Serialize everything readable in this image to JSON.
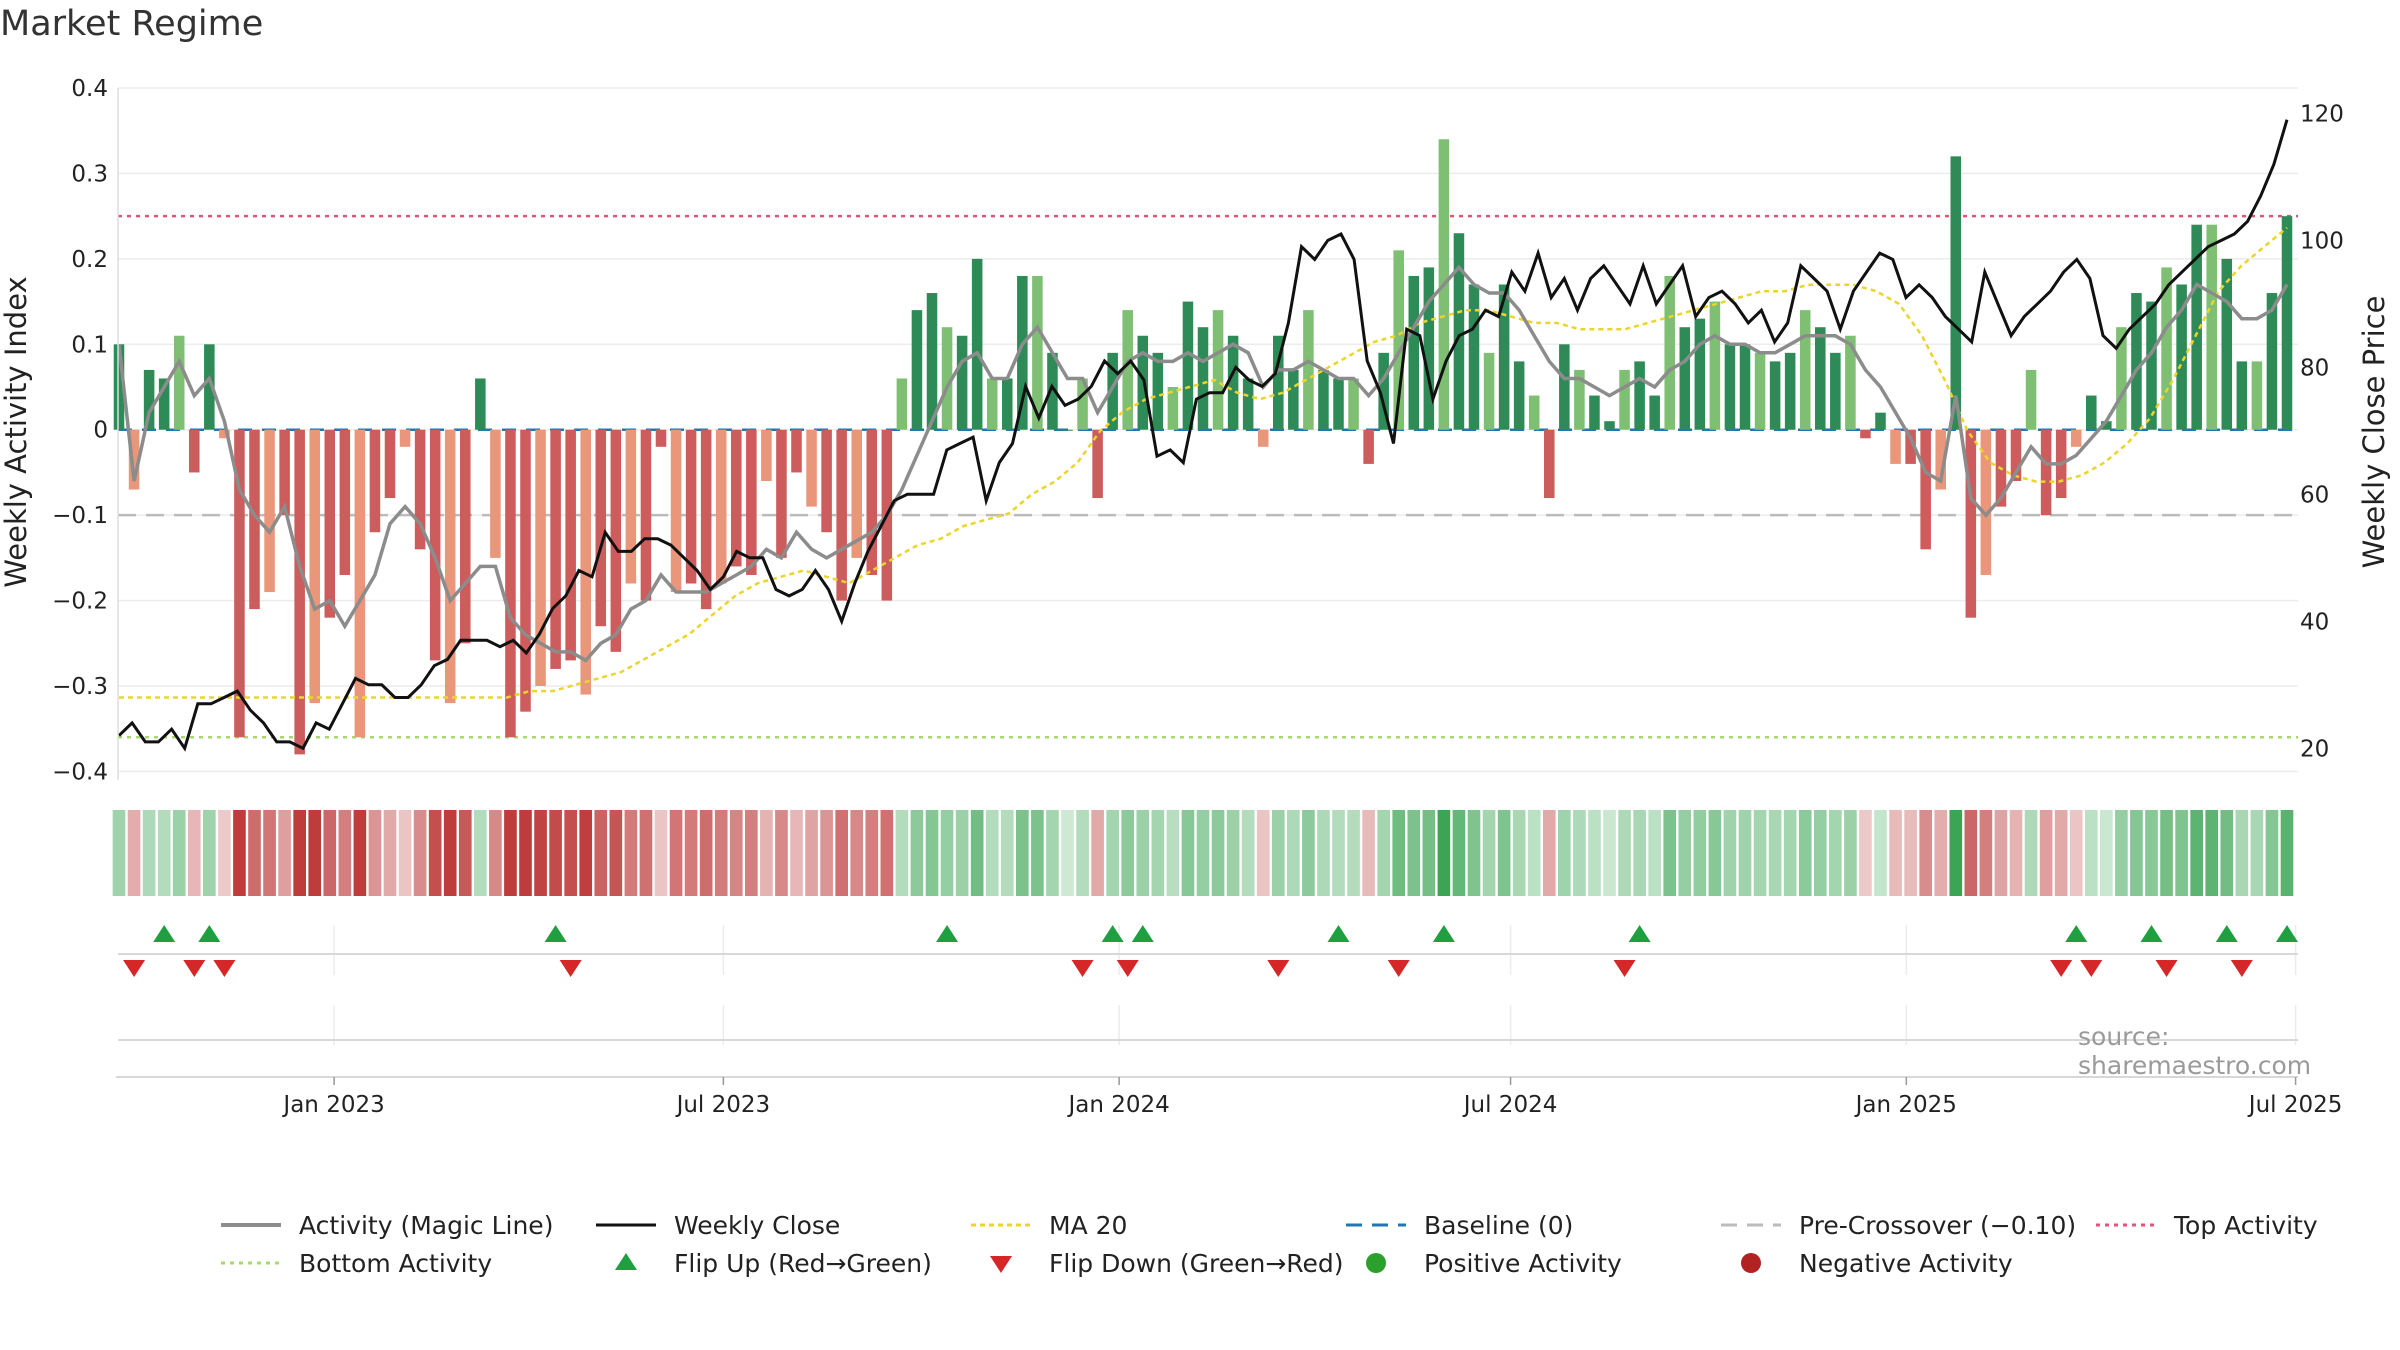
{
  "title": "Market Regime",
  "source": "source: sharemaestro.com",
  "colors": {
    "strong_green": "#2e8b57",
    "light_green": "#7fbf73",
    "strong_red": "#cd5c5c",
    "light_red": "#e9967a",
    "magic_line": "#8c8c8c",
    "close": "#111111",
    "ma20": "#ecd52a",
    "baseline": "#1f77b4",
    "pre_crossover": "#bbbbbb",
    "top": "#e05577",
    "bottom": "#a9d86e",
    "flip_up": "#1fa040",
    "flip_down": "#d62728",
    "pos_dot": "#2ca02c",
    "neg_dot": "#b22222"
  },
  "chart_data": {
    "type": "bar",
    "title": "Market Regime",
    "ylabel": "Weekly Activity Index",
    "ylabel_right": "Weekly Close Price",
    "ylim": [
      -0.41,
      0.4
    ],
    "ylim_right": [
      15,
      124
    ],
    "yticks": [
      "0.4",
      "0.3",
      "0.2",
      "0.1",
      "0",
      "−0.1",
      "−0.2",
      "−0.3",
      "−0.4"
    ],
    "yticks_right": [
      "120",
      "100",
      "80",
      "60",
      "40",
      "20"
    ],
    "xticks": [
      {
        "label": "Jan 2023",
        "x": "2023-01-01"
      },
      {
        "label": "Jul 2023",
        "x": "2023-07-01"
      },
      {
        "label": "Jan 2024",
        "x": "2024-01-01"
      },
      {
        "label": "Jul 2024",
        "x": "2024-07-01"
      },
      {
        "label": "Jan 2025",
        "x": "2025-01-01"
      },
      {
        "label": "Jul 2025",
        "x": "2025-07-01"
      }
    ],
    "x_start": "2022-09-23",
    "x_step_days": 7,
    "activity": [
      0.1,
      -0.07,
      0.07,
      0.06,
      0.11,
      -0.05,
      0.1,
      -0.01,
      -0.36,
      -0.21,
      -0.19,
      -0.1,
      -0.38,
      -0.32,
      -0.22,
      -0.17,
      -0.36,
      -0.12,
      -0.08,
      -0.02,
      -0.14,
      -0.27,
      -0.32,
      -0.25,
      0.06,
      -0.15,
      -0.36,
      -0.33,
      -0.3,
      -0.28,
      -0.27,
      -0.31,
      -0.23,
      -0.26,
      -0.18,
      -0.2,
      -0.02,
      -0.19,
      -0.18,
      -0.21,
      -0.18,
      -0.16,
      -0.17,
      -0.06,
      -0.15,
      -0.05,
      -0.09,
      -0.12,
      -0.2,
      -0.15,
      -0.17,
      -0.2,
      0.06,
      0.14,
      0.16,
      0.12,
      0.11,
      0.2,
      0.06,
      0.06,
      0.18,
      0.18,
      0.09,
      0.0,
      0.06,
      -0.08,
      0.09,
      0.14,
      0.11,
      0.09,
      0.05,
      0.15,
      0.12,
      0.14,
      0.11,
      0.06,
      -0.02,
      0.11,
      0.07,
      0.14,
      0.07,
      0.06,
      0.06,
      -0.04,
      0.09,
      0.21,
      0.18,
      0.19,
      0.34,
      0.23,
      0.17,
      0.09,
      0.17,
      0.08,
      0.04,
      -0.08,
      0.1,
      0.07,
      0.04,
      0.01,
      0.07,
      0.08,
      0.04,
      0.18,
      0.12,
      0.13,
      0.15,
      0.1,
      0.1,
      0.09,
      0.08,
      0.09,
      0.14,
      0.12,
      0.09,
      0.11,
      -0.01,
      0.02,
      -0.04,
      -0.04,
      -0.14,
      -0.07,
      0.32,
      -0.22,
      -0.17,
      -0.09,
      -0.06,
      0.07,
      -0.1,
      -0.08,
      -0.02,
      0.04,
      0.01,
      0.12,
      0.16,
      0.15,
      0.19,
      0.17,
      0.24,
      0.24,
      0.2,
      0.08,
      0.08,
      0.16,
      0.25
    ],
    "magic_line": [
      0.1,
      -0.06,
      0.02,
      0.05,
      0.08,
      0.04,
      0.06,
      0.01,
      -0.07,
      -0.1,
      -0.12,
      -0.09,
      -0.16,
      -0.21,
      -0.2,
      -0.23,
      -0.2,
      -0.17,
      -0.11,
      -0.09,
      -0.11,
      -0.15,
      -0.2,
      -0.18,
      -0.16,
      -0.16,
      -0.22,
      -0.24,
      -0.25,
      -0.26,
      -0.26,
      -0.27,
      -0.25,
      -0.24,
      -0.21,
      -0.2,
      -0.17,
      -0.19,
      -0.19,
      -0.19,
      -0.18,
      -0.17,
      -0.16,
      -0.14,
      -0.15,
      -0.12,
      -0.14,
      -0.15,
      -0.14,
      -0.13,
      -0.12,
      -0.1,
      -0.07,
      -0.03,
      0.01,
      0.05,
      0.08,
      0.09,
      0.06,
      0.06,
      0.1,
      0.12,
      0.09,
      0.06,
      0.06,
      0.02,
      0.05,
      0.08,
      0.09,
      0.08,
      0.08,
      0.09,
      0.08,
      0.09,
      0.1,
      0.09,
      0.05,
      0.07,
      0.07,
      0.08,
      0.07,
      0.06,
      0.06,
      0.04,
      0.06,
      0.09,
      0.12,
      0.15,
      0.17,
      0.19,
      0.17,
      0.16,
      0.16,
      0.14,
      0.11,
      0.08,
      0.06,
      0.06,
      0.05,
      0.04,
      0.05,
      0.06,
      0.05,
      0.07,
      0.08,
      0.1,
      0.11,
      0.1,
      0.1,
      0.09,
      0.09,
      0.1,
      0.11,
      0.11,
      0.11,
      0.1,
      0.07,
      0.05,
      0.02,
      -0.01,
      -0.05,
      -0.06,
      0.04,
      -0.08,
      -0.1,
      -0.08,
      -0.05,
      -0.02,
      -0.04,
      -0.04,
      -0.03,
      -0.01,
      0.01,
      0.04,
      0.07,
      0.09,
      0.12,
      0.14,
      0.17,
      0.16,
      0.15,
      0.13,
      0.13,
      0.14,
      0.17
    ],
    "weekly_close": [
      22,
      24,
      21,
      21,
      23,
      20,
      27,
      27,
      28,
      29,
      26,
      24,
      21,
      21,
      20,
      24,
      23,
      27,
      31,
      30,
      30,
      28,
      28,
      30,
      33,
      34,
      37,
      37,
      37,
      36,
      37,
      35,
      38,
      42,
      44,
      48,
      47,
      54,
      51,
      51,
      53,
      53,
      52,
      50,
      48,
      45,
      47,
      51,
      50,
      50,
      45,
      44,
      45,
      48,
      45,
      40,
      46,
      51,
      55,
      59,
      60,
      60,
      60,
      67,
      68,
      69,
      59,
      65,
      68,
      77,
      72,
      77,
      74,
      75,
      77,
      81,
      79,
      81,
      78,
      66,
      67,
      65,
      75,
      76,
      76,
      80,
      78,
      77,
      79,
      87,
      99,
      97,
      100,
      101,
      97,
      81,
      76,
      68,
      86,
      85,
      75,
      81,
      85,
      86,
      89,
      88,
      95,
      92,
      98,
      91,
      94,
      89,
      94,
      96,
      93,
      90,
      96,
      90,
      93,
      96,
      88,
      91,
      92,
      90,
      87,
      89,
      84,
      87,
      96,
      94,
      92,
      86,
      92,
      95,
      98,
      97,
      91,
      93,
      91,
      88,
      86,
      84,
      95,
      90,
      85,
      88,
      90,
      92,
      95,
      97,
      94,
      85,
      83,
      86,
      88,
      90,
      93,
      95,
      97,
      99,
      100,
      101,
      103,
      107,
      112,
      119
    ],
    "ma20": [
      28,
      28,
      28,
      28,
      28,
      28,
      28,
      28,
      28,
      28,
      28,
      28,
      28,
      28,
      28,
      28,
      28,
      28,
      29,
      29,
      30,
      31,
      32,
      34,
      36,
      38,
      41,
      44,
      46,
      47,
      48,
      47,
      46,
      48,
      50,
      52,
      53,
      55,
      56,
      57,
      60,
      62,
      65,
      70,
      73,
      75,
      76,
      77,
      78,
      76,
      75,
      76,
      78,
      80,
      82,
      84,
      85,
      87,
      88,
      89,
      89,
      88,
      87,
      87,
      86,
      86,
      86,
      87,
      88,
      89,
      90,
      91,
      92,
      92,
      93,
      93,
      93,
      92,
      90,
      85,
      78,
      70,
      65,
      63,
      62,
      62,
      63,
      65,
      68,
      72,
      78,
      85,
      92,
      96,
      99,
      102
    ],
    "baseline": 0,
    "pre_crossover": -0.1,
    "top_activity": 0.25,
    "bottom_activity": -0.36,
    "flip_up": [
      "2022-10-14",
      "2022-11-04",
      "2023-04-14",
      "2023-10-13",
      "2023-12-29",
      "2024-01-12",
      "2024-04-12",
      "2024-05-31",
      "2024-08-30",
      "2025-03-21",
      "2025-04-25",
      "2025-05-30",
      "2025-06-27"
    ],
    "flip_down": [
      "2022-09-30",
      "2022-10-28",
      "2022-11-11",
      "2023-04-21",
      "2023-12-15",
      "2024-01-05",
      "2024-03-15",
      "2024-05-10",
      "2024-08-23",
      "2025-03-14",
      "2025-03-28",
      "2025-05-02",
      "2025-06-06"
    ],
    "legend": [
      "Activity (Magic Line)",
      "Weekly Close",
      "MA 20",
      "Baseline (0)",
      "Pre-Crossover (−0.10)",
      "Top Activity",
      "Bottom Activity",
      "Flip Up (Red→Green)",
      "Flip Down (Green→Red)",
      "Positive Activity",
      "Negative Activity"
    ],
    "legend_placement": "bottom"
  }
}
